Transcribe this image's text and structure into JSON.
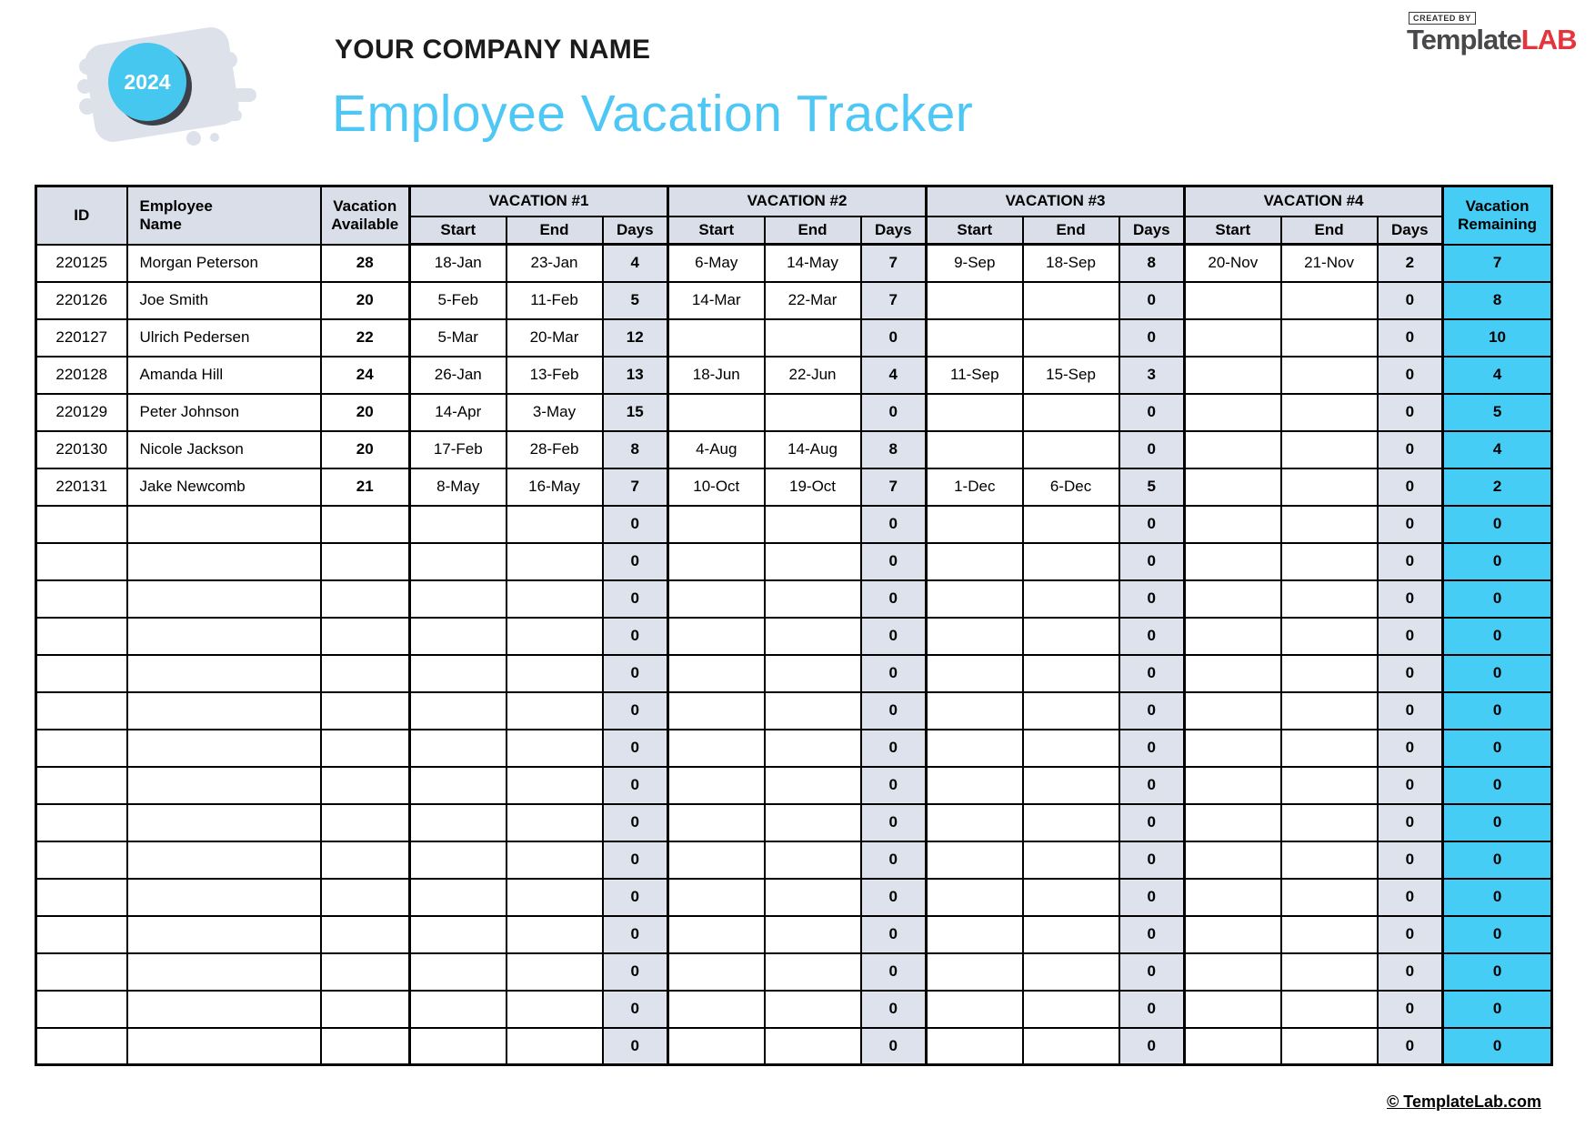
{
  "page": {
    "badge": {
      "year": "2024"
    },
    "company_name": "YOUR COMPANY NAME",
    "title": "Employee Vacation Tracker",
    "logo": {
      "created_by": "CREATED BY",
      "brand_dark": "Template",
      "brand_red": "LAB"
    },
    "footer": {
      "copyright": "© TemplateLab.com"
    }
  },
  "colors": {
    "accent_blue": "#45cdf5",
    "title_blue": "#4ec7f4",
    "header_gray": "#d9dee8",
    "days_gray": "#dde2ec",
    "badge_blue": "#45c7f0",
    "badge_shadow": "#3d4147",
    "blob_gray": "#dde1e9",
    "logo_red": "#e5343b",
    "logo_dark": "#48484a",
    "border_black": "#000000"
  },
  "table": {
    "headers": {
      "id": "ID",
      "employee_name_line1": "Employee",
      "employee_name_line2": "Name",
      "vacation_available_line1": "Vacation",
      "vacation_available_line2": "Available",
      "groups": [
        "VACATION #1",
        "VACATION #2",
        "VACATION #3",
        "VACATION #4"
      ],
      "sub": [
        "Start",
        "End",
        "Days"
      ],
      "remaining_line1": "Vacation",
      "remaining_line2": "Remaining"
    },
    "rows": [
      {
        "id": "220125",
        "name": "Morgan Peterson",
        "available": "28",
        "vacations": [
          {
            "start": "18-Jan",
            "end": "23-Jan",
            "days": "4"
          },
          {
            "start": "6-May",
            "end": "14-May",
            "days": "7"
          },
          {
            "start": "9-Sep",
            "end": "18-Sep",
            "days": "8"
          },
          {
            "start": "20-Nov",
            "end": "21-Nov",
            "days": "2"
          }
        ],
        "remaining": "7"
      },
      {
        "id": "220126",
        "name": "Joe Smith",
        "available": "20",
        "vacations": [
          {
            "start": "5-Feb",
            "end": "11-Feb",
            "days": "5"
          },
          {
            "start": "14-Mar",
            "end": "22-Mar",
            "days": "7"
          },
          {
            "start": "",
            "end": "",
            "days": "0"
          },
          {
            "start": "",
            "end": "",
            "days": "0"
          }
        ],
        "remaining": "8"
      },
      {
        "id": "220127",
        "name": "Ulrich Pedersen",
        "available": "22",
        "vacations": [
          {
            "start": "5-Mar",
            "end": "20-Mar",
            "days": "12"
          },
          {
            "start": "",
            "end": "",
            "days": "0"
          },
          {
            "start": "",
            "end": "",
            "days": "0"
          },
          {
            "start": "",
            "end": "",
            "days": "0"
          }
        ],
        "remaining": "10"
      },
      {
        "id": "220128",
        "name": "Amanda Hill",
        "available": "24",
        "vacations": [
          {
            "start": "26-Jan",
            "end": "13-Feb",
            "days": "13"
          },
          {
            "start": "18-Jun",
            "end": "22-Jun",
            "days": "4"
          },
          {
            "start": "11-Sep",
            "end": "15-Sep",
            "days": "3"
          },
          {
            "start": "",
            "end": "",
            "days": "0"
          }
        ],
        "remaining": "4"
      },
      {
        "id": "220129",
        "name": "Peter Johnson",
        "available": "20",
        "vacations": [
          {
            "start": "14-Apr",
            "end": "3-May",
            "days": "15"
          },
          {
            "start": "",
            "end": "",
            "days": "0"
          },
          {
            "start": "",
            "end": "",
            "days": "0"
          },
          {
            "start": "",
            "end": "",
            "days": "0"
          }
        ],
        "remaining": "5"
      },
      {
        "id": "220130",
        "name": "Nicole Jackson",
        "available": "20",
        "vacations": [
          {
            "start": "17-Feb",
            "end": "28-Feb",
            "days": "8"
          },
          {
            "start": "4-Aug",
            "end": "14-Aug",
            "days": "8"
          },
          {
            "start": "",
            "end": "",
            "days": "0"
          },
          {
            "start": "",
            "end": "",
            "days": "0"
          }
        ],
        "remaining": "4"
      },
      {
        "id": "220131",
        "name": "Jake Newcomb",
        "available": "21",
        "vacations": [
          {
            "start": "8-May",
            "end": "16-May",
            "days": "7"
          },
          {
            "start": "10-Oct",
            "end": "19-Oct",
            "days": "7"
          },
          {
            "start": "1-Dec",
            "end": "6-Dec",
            "days": "5"
          },
          {
            "start": "",
            "end": "",
            "days": "0"
          }
        ],
        "remaining": "2"
      },
      {
        "id": "",
        "name": "",
        "available": "",
        "vacations": [
          {
            "start": "",
            "end": "",
            "days": "0"
          },
          {
            "start": "",
            "end": "",
            "days": "0"
          },
          {
            "start": "",
            "end": "",
            "days": "0"
          },
          {
            "start": "",
            "end": "",
            "days": "0"
          }
        ],
        "remaining": "0"
      },
      {
        "id": "",
        "name": "",
        "available": "",
        "vacations": [
          {
            "start": "",
            "end": "",
            "days": "0"
          },
          {
            "start": "",
            "end": "",
            "days": "0"
          },
          {
            "start": "",
            "end": "",
            "days": "0"
          },
          {
            "start": "",
            "end": "",
            "days": "0"
          }
        ],
        "remaining": "0"
      },
      {
        "id": "",
        "name": "",
        "available": "",
        "vacations": [
          {
            "start": "",
            "end": "",
            "days": "0"
          },
          {
            "start": "",
            "end": "",
            "days": "0"
          },
          {
            "start": "",
            "end": "",
            "days": "0"
          },
          {
            "start": "",
            "end": "",
            "days": "0"
          }
        ],
        "remaining": "0"
      },
      {
        "id": "",
        "name": "",
        "available": "",
        "vacations": [
          {
            "start": "",
            "end": "",
            "days": "0"
          },
          {
            "start": "",
            "end": "",
            "days": "0"
          },
          {
            "start": "",
            "end": "",
            "days": "0"
          },
          {
            "start": "",
            "end": "",
            "days": "0"
          }
        ],
        "remaining": "0"
      },
      {
        "id": "",
        "name": "",
        "available": "",
        "vacations": [
          {
            "start": "",
            "end": "",
            "days": "0"
          },
          {
            "start": "",
            "end": "",
            "days": "0"
          },
          {
            "start": "",
            "end": "",
            "days": "0"
          },
          {
            "start": "",
            "end": "",
            "days": "0"
          }
        ],
        "remaining": "0"
      },
      {
        "id": "",
        "name": "",
        "available": "",
        "vacations": [
          {
            "start": "",
            "end": "",
            "days": "0"
          },
          {
            "start": "",
            "end": "",
            "days": "0"
          },
          {
            "start": "",
            "end": "",
            "days": "0"
          },
          {
            "start": "",
            "end": "",
            "days": "0"
          }
        ],
        "remaining": "0"
      },
      {
        "id": "",
        "name": "",
        "available": "",
        "vacations": [
          {
            "start": "",
            "end": "",
            "days": "0"
          },
          {
            "start": "",
            "end": "",
            "days": "0"
          },
          {
            "start": "",
            "end": "",
            "days": "0"
          },
          {
            "start": "",
            "end": "",
            "days": "0"
          }
        ],
        "remaining": "0"
      },
      {
        "id": "",
        "name": "",
        "available": "",
        "vacations": [
          {
            "start": "",
            "end": "",
            "days": "0"
          },
          {
            "start": "",
            "end": "",
            "days": "0"
          },
          {
            "start": "",
            "end": "",
            "days": "0"
          },
          {
            "start": "",
            "end": "",
            "days": "0"
          }
        ],
        "remaining": "0"
      },
      {
        "id": "",
        "name": "",
        "available": "",
        "vacations": [
          {
            "start": "",
            "end": "",
            "days": "0"
          },
          {
            "start": "",
            "end": "",
            "days": "0"
          },
          {
            "start": "",
            "end": "",
            "days": "0"
          },
          {
            "start": "",
            "end": "",
            "days": "0"
          }
        ],
        "remaining": "0"
      },
      {
        "id": "",
        "name": "",
        "available": "",
        "vacations": [
          {
            "start": "",
            "end": "",
            "days": "0"
          },
          {
            "start": "",
            "end": "",
            "days": "0"
          },
          {
            "start": "",
            "end": "",
            "days": "0"
          },
          {
            "start": "",
            "end": "",
            "days": "0"
          }
        ],
        "remaining": "0"
      },
      {
        "id": "",
        "name": "",
        "available": "",
        "vacations": [
          {
            "start": "",
            "end": "",
            "days": "0"
          },
          {
            "start": "",
            "end": "",
            "days": "0"
          },
          {
            "start": "",
            "end": "",
            "days": "0"
          },
          {
            "start": "",
            "end": "",
            "days": "0"
          }
        ],
        "remaining": "0"
      },
      {
        "id": "",
        "name": "",
        "available": "",
        "vacations": [
          {
            "start": "",
            "end": "",
            "days": "0"
          },
          {
            "start": "",
            "end": "",
            "days": "0"
          },
          {
            "start": "",
            "end": "",
            "days": "0"
          },
          {
            "start": "",
            "end": "",
            "days": "0"
          }
        ],
        "remaining": "0"
      },
      {
        "id": "",
        "name": "",
        "available": "",
        "vacations": [
          {
            "start": "",
            "end": "",
            "days": "0"
          },
          {
            "start": "",
            "end": "",
            "days": "0"
          },
          {
            "start": "",
            "end": "",
            "days": "0"
          },
          {
            "start": "",
            "end": "",
            "days": "0"
          }
        ],
        "remaining": "0"
      },
      {
        "id": "",
        "name": "",
        "available": "",
        "vacations": [
          {
            "start": "",
            "end": "",
            "days": "0"
          },
          {
            "start": "",
            "end": "",
            "days": "0"
          },
          {
            "start": "",
            "end": "",
            "days": "0"
          },
          {
            "start": "",
            "end": "",
            "days": "0"
          }
        ],
        "remaining": "0"
      },
      {
        "id": "",
        "name": "",
        "available": "",
        "vacations": [
          {
            "start": "",
            "end": "",
            "days": "0"
          },
          {
            "start": "",
            "end": "",
            "days": "0"
          },
          {
            "start": "",
            "end": "",
            "days": "0"
          },
          {
            "start": "",
            "end": "",
            "days": "0"
          }
        ],
        "remaining": "0"
      }
    ]
  }
}
